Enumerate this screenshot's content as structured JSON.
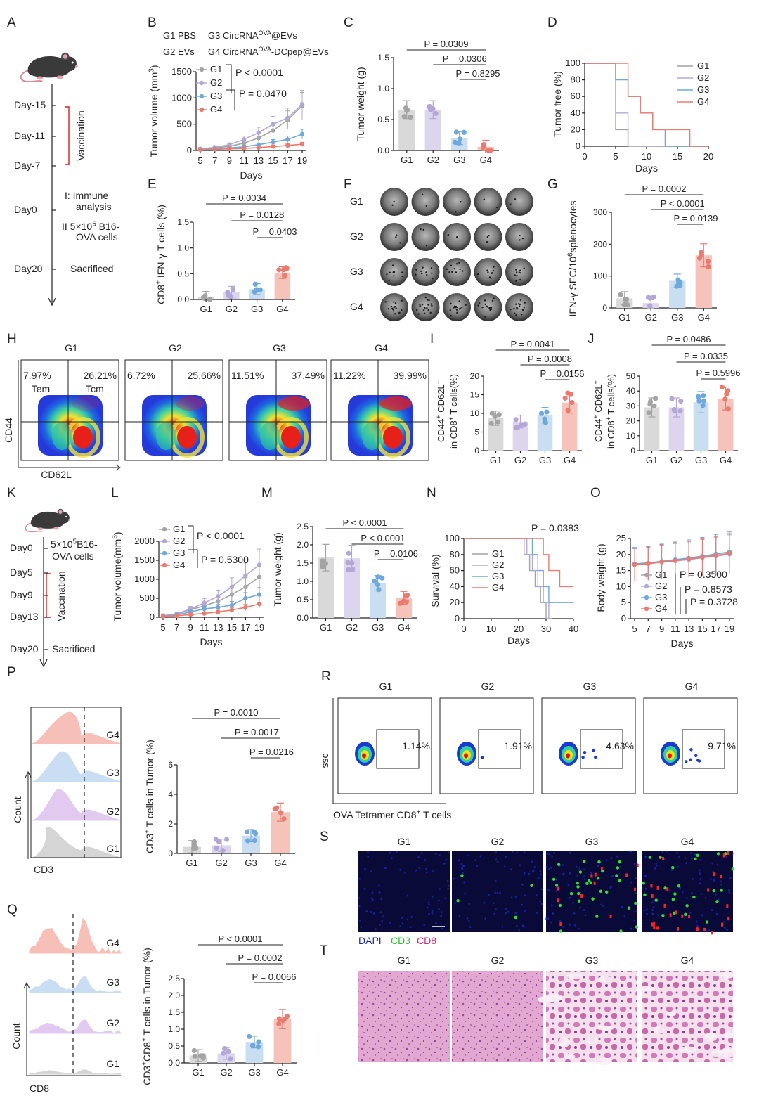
{
  "groups": [
    "G1",
    "G2",
    "G3",
    "G4"
  ],
  "colors": {
    "G1": "#a4a4a4",
    "G2": "#b4a7d6",
    "G3": "#6fa8dc",
    "G4": "#ea7b6e",
    "bar_G1": "#d9d9d9",
    "bar_G2": "#ddd5ee",
    "bar_G3": "#c9def0",
    "bar_G4": "#f6c3bb"
  },
  "icons": {
    "mouse": "mouse-icon"
  },
  "panel_A": {
    "letter": "A",
    "timeline": [
      "Day-15",
      "Day-11",
      "Day-7",
      "Day0",
      "Day20"
    ],
    "vaccination": "Vaccination",
    "step1": "I: Immune",
    "step1b": "analysis",
    "step2_pre": "II  5×10",
    "step2_sup": "5",
    "step2_post": " B16-",
    "step2b": "OVA cells",
    "sacrificed": "Sacrificed"
  },
  "panel_B": {
    "letter": "B",
    "legend": [
      {
        "label": "G1  PBS"
      },
      {
        "label": "G3  CircRNA",
        "sup": "OVA",
        "tail": "@EVs"
      },
      {
        "label": "G2  EVs"
      },
      {
        "label": "G4  CircRNA",
        "sup": "OVA",
        "tail": "-DCpep@EVs"
      }
    ],
    "chart_data": {
      "type": "line",
      "x": [
        5,
        7,
        9,
        11,
        13,
        15,
        17,
        19
      ],
      "xlabel": "Days",
      "ylabel": "Tumor volume (mm",
      "ylabel_sup": "3",
      "ylabel_tail": ")",
      "ylim": [
        0,
        1500
      ],
      "yticks": [
        0,
        500,
        1000,
        1500
      ],
      "series": [
        {
          "name": "G1",
          "values": [
            30,
            50,
            80,
            140,
            240,
            380,
            580,
            850
          ]
        },
        {
          "name": "G2",
          "values": [
            30,
            60,
            110,
            210,
            340,
            500,
            620,
            880
          ]
        },
        {
          "name": "G3",
          "values": [
            20,
            30,
            50,
            70,
            110,
            160,
            210,
            310
          ]
        },
        {
          "name": "G4",
          "values": [
            15,
            20,
            30,
            40,
            55,
            75,
            95,
            120
          ]
        }
      ],
      "pvals": [
        "P < 0.0001",
        "P = 0.0470"
      ]
    }
  },
  "panel_C": {
    "letter": "C",
    "chart_data": {
      "type": "bar",
      "categories": [
        "G1",
        "G2",
        "G3",
        "G4"
      ],
      "values": [
        0.66,
        0.66,
        0.2,
        0.06
      ],
      "ylabel": "Tumor weight (g)",
      "ylim": [
        0,
        1.5
      ],
      "yticks": [
        "0.0",
        "0.5",
        "1.0",
        "1.5"
      ],
      "pvals": [
        "P = 0.0309",
        "P = 0.0306",
        "P = 0.8295"
      ]
    }
  },
  "panel_D": {
    "letter": "D",
    "chart_data": {
      "type": "line",
      "xlabel": "Days",
      "ylabel": "Tumor free (%)",
      "xlim": [
        0,
        20
      ],
      "ylim": [
        0,
        100
      ],
      "xticks": [
        0,
        5,
        10,
        15,
        20
      ],
      "yticks": [
        0,
        20,
        40,
        60,
        80,
        100
      ],
      "series": [
        {
          "name": "G1",
          "steps": [
            [
              0,
              100
            ],
            [
              5,
              100
            ],
            [
              5,
              20
            ],
            [
              7,
              20
            ],
            [
              7,
              0
            ],
            [
              20,
              0
            ]
          ]
        },
        {
          "name": "G2",
          "steps": [
            [
              0,
              100
            ],
            [
              5,
              100
            ],
            [
              5,
              40
            ],
            [
              7,
              40
            ],
            [
              7,
              0
            ],
            [
              20,
              0
            ]
          ]
        },
        {
          "name": "G3",
          "steps": [
            [
              0,
              100
            ],
            [
              5,
              100
            ],
            [
              5,
              80
            ],
            [
              7,
              80
            ],
            [
              7,
              60
            ],
            [
              9,
              60
            ],
            [
              9,
              40
            ],
            [
              11,
              40
            ],
            [
              11,
              20
            ],
            [
              13,
              20
            ],
            [
              13,
              0
            ],
            [
              20,
              0
            ]
          ]
        },
        {
          "name": "G4",
          "steps": [
            [
              0,
              100
            ],
            [
              7,
              100
            ],
            [
              7,
              60
            ],
            [
              9,
              60
            ],
            [
              9,
              40
            ],
            [
              11,
              40
            ],
            [
              11,
              20
            ],
            [
              17,
              20
            ],
            [
              17,
              0
            ],
            [
              20,
              0
            ]
          ]
        }
      ]
    }
  },
  "panel_E": {
    "letter": "E",
    "chart_data": {
      "type": "bar",
      "categories": [
        "G1",
        "G2",
        "G3",
        "G4"
      ],
      "values": [
        0.05,
        0.15,
        0.2,
        0.52
      ],
      "ylabel_pre": "CD8",
      "ylabel_sup": "+",
      "ylabel_tail": " IFN-γ T cells (%)",
      "ylim": [
        0,
        1.5
      ],
      "yticks": [
        "0.0",
        "0.5",
        "1.0",
        "1.5"
      ],
      "pvals": [
        "P = 0.0034",
        "P = 0.0128",
        "P = 0.0403"
      ]
    }
  },
  "panel_F": {
    "letter": "F",
    "rows": [
      "G1",
      "G2",
      "G3",
      "G4"
    ]
  },
  "panel_G": {
    "letter": "G",
    "chart_data": {
      "type": "bar",
      "categories": [
        "G1",
        "G2",
        "G3",
        "G4"
      ],
      "values": [
        30,
        15,
        85,
        165
      ],
      "ylabel_pre": "IFN-γ SFC/10",
      "ylabel_sup": "6",
      "ylabel_tail": "splenocytes",
      "ylim": [
        0,
        300
      ],
      "yticks": [
        "0",
        "100",
        "200",
        "300"
      ],
      "pvals": [
        "P = 0.0002",
        "P < 0.0001",
        "P = 0.0139"
      ]
    }
  },
  "panel_H": {
    "letter": "H",
    "plots": [
      {
        "group": "G1",
        "left": "7.97%",
        "right": "26.21%"
      },
      {
        "group": "G2",
        "left": "6.72%",
        "right": "25.66%"
      },
      {
        "group": "G3",
        "left": "11.51%",
        "right": "37.49%"
      },
      {
        "group": "G4",
        "left": "11.22%",
        "right": "39.99%"
      }
    ],
    "tem": "Tem",
    "tcm": "Tcm",
    "xlabel": "CD62L",
    "ylabel": "CD44"
  },
  "panel_I": {
    "letter": "I",
    "chart_data": {
      "type": "bar",
      "categories": [
        "G1",
        "G2",
        "G3",
        "G4"
      ],
      "values": [
        8.7,
        7.8,
        9.5,
        12.9
      ],
      "ylabel1_pre": "CD44",
      "ylabel1_sup": "+",
      "ylabel1_mid": " CD62L",
      "ylabel1_sup2": "−",
      "ylabel2_pre": "in CD8",
      "ylabel2_sup": "+",
      "ylabel2_tail": " T cells(%)",
      "ylim": [
        0,
        20
      ],
      "yticks": [
        "0",
        "5",
        "10",
        "15",
        "20"
      ],
      "pvals": [
        "P = 0.0041",
        "P = 0.0008",
        "P = 0.0156"
      ]
    }
  },
  "panel_J": {
    "letter": "J",
    "chart_data": {
      "type": "bar",
      "categories": [
        "G1",
        "G2",
        "G3",
        "G4"
      ],
      "values": [
        29,
        29,
        32.5,
        35
      ],
      "ylabel1_pre": "CD44",
      "ylabel1_sup": "+",
      "ylabel1_mid": " CD62L",
      "ylabel1_sup2": "+",
      "ylabel2_pre": "in CD8",
      "ylabel2_sup": "+",
      "ylabel2_tail": " T cells(%)",
      "ylim": [
        0,
        50
      ],
      "yticks": [
        "0",
        "10",
        "20",
        "30",
        "40",
        "50"
      ],
      "pvals": [
        "P = 0.0486",
        "P = 0.0335",
        "P = 0.5996"
      ]
    }
  },
  "panel_K": {
    "letter": "K",
    "timeline": [
      "Day0",
      "Day5",
      "Day9",
      "Day13",
      "Day20"
    ],
    "step1_pre": "5×10",
    "step1_sup": "5",
    "step1_post": "B16-",
    "step1b": "OVA cells",
    "vaccination": "Vaccination",
    "sacrificed": "Sacrificed"
  },
  "panel_L": {
    "letter": "L",
    "chart_data": {
      "type": "line",
      "x": [
        5,
        7,
        9,
        11,
        13,
        15,
        17,
        19
      ],
      "xlabel": "Days",
      "ylabel": "Tumor volume(mm",
      "ylabel_sup": "3",
      "ylabel_tail": ")",
      "ylim": [
        0,
        2000
      ],
      "yticks": [
        0,
        500,
        1000,
        1500,
        2000
      ],
      "series": [
        {
          "name": "G1",
          "values": [
            40,
            80,
            200,
            300,
            420,
            600,
            800,
            1060
          ]
        },
        {
          "name": "G2",
          "values": [
            40,
            90,
            220,
            380,
            550,
            800,
            1100,
            1380
          ]
        },
        {
          "name": "G3",
          "values": [
            30,
            60,
            140,
            220,
            260,
            320,
            500,
            600
          ]
        },
        {
          "name": "G4",
          "values": [
            20,
            40,
            70,
            100,
            140,
            190,
            260,
            350
          ]
        }
      ],
      "pvals": [
        "P < 0.0001",
        "P = 0.5300"
      ]
    }
  },
  "panel_M": {
    "letter": "M",
    "chart_data": {
      "type": "bar",
      "categories": [
        "G1",
        "G2",
        "G3",
        "G4"
      ],
      "values": [
        1.65,
        1.63,
        0.95,
        0.55
      ],
      "ylabel": "Tumor weight (g)",
      "ylim": [
        0,
        2.5
      ],
      "yticks": [
        "0.0",
        "0.5",
        "1.0",
        "1.5",
        "2.0",
        "2.5"
      ],
      "pvals": [
        "P < 0.0001",
        "P < 0.0001",
        "P = 0.0106"
      ]
    }
  },
  "panel_N": {
    "letter": "N",
    "chart_data": {
      "type": "line",
      "xlabel": "Days",
      "ylabel": "Survival (%)",
      "xlim": [
        0,
        40
      ],
      "ylim": [
        0,
        100
      ],
      "xticks": [
        0,
        10,
        20,
        30,
        40
      ],
      "yticks": [
        0,
        20,
        40,
        60,
        80,
        100
      ],
      "pval": "P = 0.0383",
      "series": [
        {
          "name": "G1",
          "steps": [
            [
              0,
              100
            ],
            [
              22,
              100
            ],
            [
              22,
              80
            ],
            [
              24,
              80
            ],
            [
              24,
              60
            ],
            [
              26,
              60
            ],
            [
              26,
              40
            ],
            [
              28,
              40
            ],
            [
              28,
              20
            ],
            [
              30,
              20
            ],
            [
              30,
              0
            ],
            [
              31,
              0
            ]
          ]
        },
        {
          "name": "G2",
          "steps": [
            [
              0,
              100
            ],
            [
              23,
              100
            ],
            [
              23,
              80
            ],
            [
              25,
              80
            ],
            [
              25,
              60
            ],
            [
              27,
              60
            ],
            [
              27,
              40
            ],
            [
              29,
              40
            ],
            [
              29,
              20
            ],
            [
              31,
              20
            ],
            [
              31,
              0
            ],
            [
              32,
              0
            ]
          ]
        },
        {
          "name": "G3",
          "steps": [
            [
              0,
              100
            ],
            [
              25,
              100
            ],
            [
              25,
              80
            ],
            [
              27,
              80
            ],
            [
              27,
              60
            ],
            [
              29,
              60
            ],
            [
              29,
              40
            ],
            [
              31,
              40
            ],
            [
              31,
              20
            ],
            [
              40,
              20
            ]
          ]
        },
        {
          "name": "G4",
          "steps": [
            [
              0,
              100
            ],
            [
              29,
              100
            ],
            [
              29,
              80
            ],
            [
              31,
              80
            ],
            [
              31,
              60
            ],
            [
              35,
              60
            ],
            [
              35,
              40
            ],
            [
              40,
              40
            ]
          ]
        }
      ]
    }
  },
  "panel_O": {
    "letter": "O",
    "chart_data": {
      "type": "line",
      "x": [
        5,
        7,
        9,
        11,
        13,
        15,
        17,
        19
      ],
      "xlabel": "Days",
      "ylabel": "Body weight (g)",
      "ylim": [
        0,
        25
      ],
      "yticks": [
        0,
        5,
        10,
        15,
        20,
        25
      ],
      "series": [
        {
          "name": "G1",
          "values": [
            17,
            17.3,
            17.8,
            18.2,
            18.6,
            19.2,
            19.8,
            20.3
          ]
        },
        {
          "name": "G2",
          "values": [
            16.8,
            17.1,
            17.6,
            18,
            18.4,
            19,
            19.5,
            20.1
          ]
        },
        {
          "name": "G3",
          "values": [
            17.1,
            17.4,
            17.9,
            18.4,
            18.9,
            19.5,
            20.2,
            20.8
          ]
        },
        {
          "name": "G4",
          "values": [
            16.9,
            17.2,
            17.7,
            18.1,
            18.6,
            19.1,
            19.7,
            20.4
          ]
        }
      ],
      "pvals": [
        "P = 0.3500",
        "P = 0.8573",
        "P = 0.3728"
      ]
    }
  },
  "panel_P": {
    "letter": "P",
    "hist_xlabel": "CD3",
    "hist_ylabel": "Count",
    "chart_data": {
      "type": "bar",
      "categories": [
        "G1",
        "G2",
        "G3",
        "G4"
      ],
      "values": [
        0.45,
        0.55,
        1.2,
        2.8
      ],
      "ylabel_pre": "CD3",
      "ylabel_sup": "+",
      "ylabel_tail": " T cells in Tumor (%)",
      "ylim": [
        0,
        6
      ],
      "yticks": [
        "0",
        "2",
        "4",
        "6"
      ],
      "pvals": [
        "P = 0.0010",
        "P = 0.0017",
        "P = 0.0216"
      ]
    }
  },
  "panel_Q": {
    "letter": "Q",
    "hist_xlabel": "CD8",
    "hist_ylabel": "Count",
    "chart_data": {
      "type": "bar",
      "categories": [
        "G1",
        "G2",
        "G3",
        "G4"
      ],
      "values": [
        0.22,
        0.28,
        0.62,
        1.3
      ],
      "ylabel_pre": "CD3",
      "ylabel_sup": "+",
      "ylabel_mid": "CD8",
      "ylabel_sup2": "+",
      "ylabel_tail": " T cells in Tumor (%)",
      "ylim": [
        0,
        2.5
      ],
      "yticks": [
        "0.0",
        "0.5",
        "1.0",
        "1.5",
        "2.0",
        "2.5"
      ],
      "pvals": [
        "P < 0.0001",
        "P = 0.0002",
        "P = 0.0066"
      ]
    }
  },
  "panel_R": {
    "letter": "R",
    "plots": [
      {
        "group": "G1",
        "value": "1.14%"
      },
      {
        "group": "G2",
        "value": "1.91%"
      },
      {
        "group": "G3",
        "value": "4.63%"
      },
      {
        "group": "G4",
        "value": "9.71%"
      }
    ],
    "ylabel": "ssc",
    "xlabel_pre": "OVA Tetramer CD8",
    "xlabel_sup": "+",
    "xlabel_tail": " T cells"
  },
  "panel_S": {
    "letter": "S",
    "stain_labels": [
      {
        "text": "DAPI",
        "color": "#1a2aa8"
      },
      {
        "text": "CD3",
        "color": "#2fbf2f"
      },
      {
        "text": "CD8",
        "color": "#e0206a"
      }
    ]
  },
  "panel_T": {
    "letter": "T"
  }
}
